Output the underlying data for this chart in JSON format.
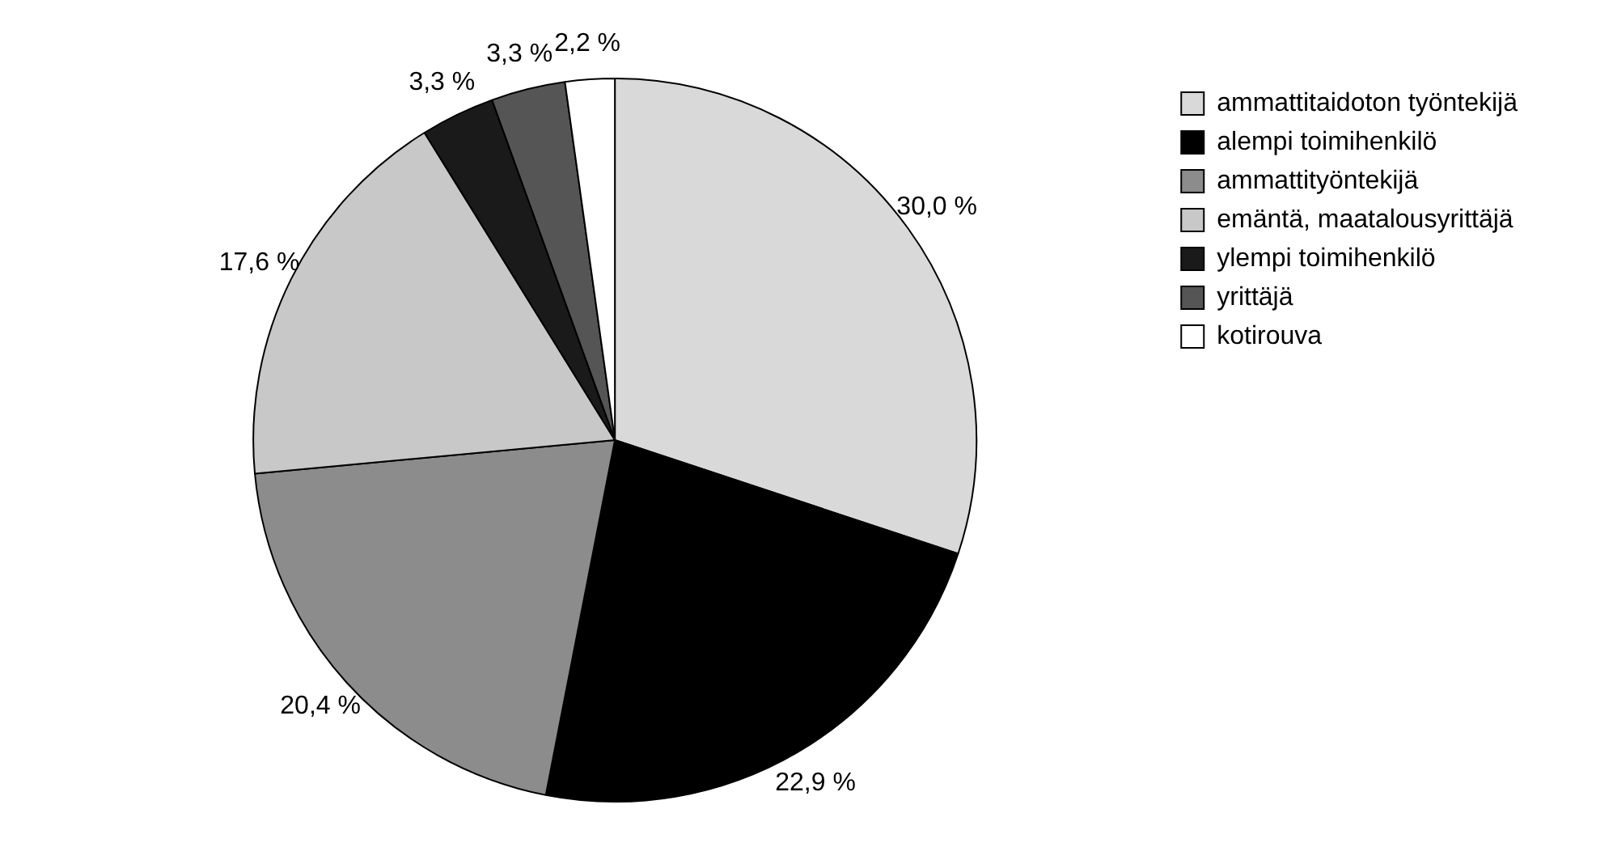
{
  "chart_data": {
    "type": "pie",
    "categories": [
      "ammattitaidoton työntekijä",
      "alempi toimihenkilö",
      "ammattityöntekijä",
      "emäntä, maatalousyrittäjä",
      "ylempi toimihenkilö",
      "yrittäjä",
      "kotirouva"
    ],
    "values": [
      30.0,
      22.9,
      20.4,
      17.6,
      3.3,
      3.3,
      2.2
    ],
    "value_labels": [
      "30,0 %",
      "22,9 %",
      "20,4 %",
      "17,6 %",
      "3,3 %",
      "3,3 %",
      "2,2 %"
    ],
    "colors": [
      "#d9d9d9",
      "#000000",
      "#8c8c8c",
      "#c8c8c8",
      "#1a1a1a",
      "#555555",
      "#ffffff"
    ],
    "legend": "right"
  }
}
